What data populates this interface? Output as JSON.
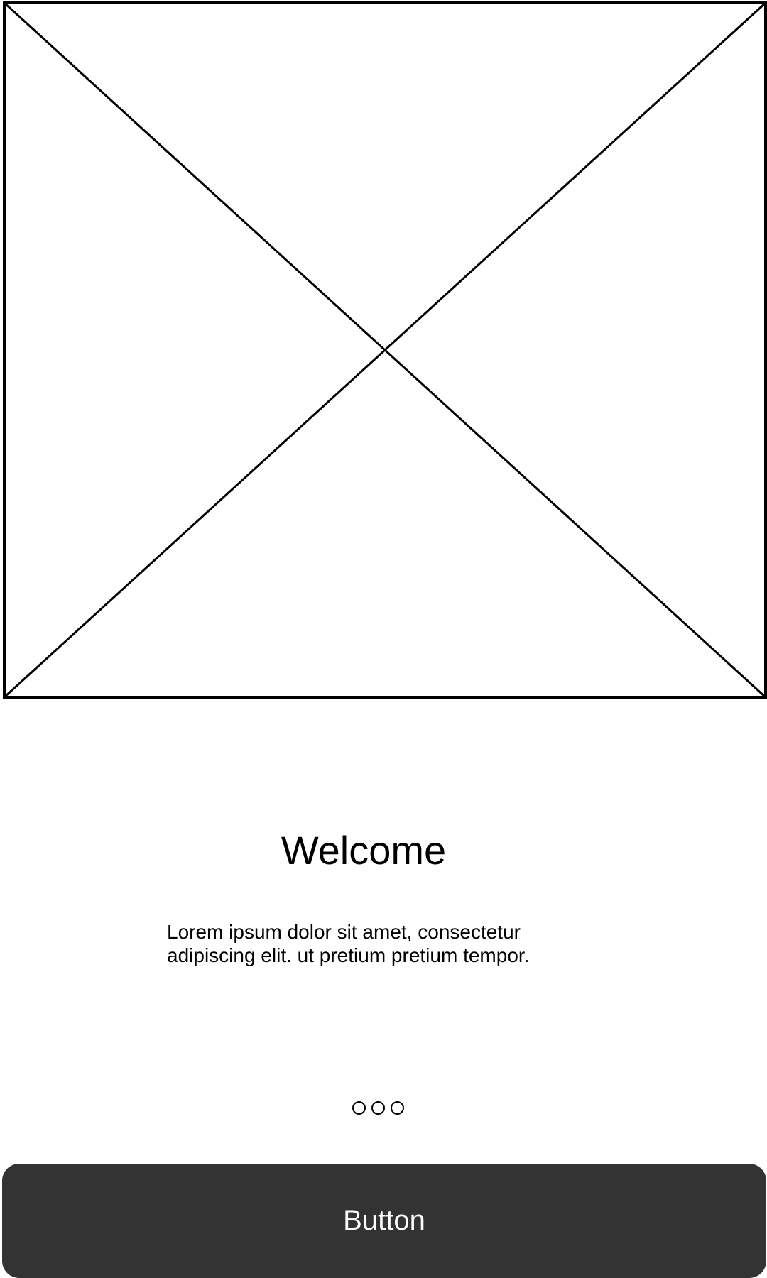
{
  "screen": {
    "image_placeholder_icon": "image-placeholder-icon",
    "title": "Welcome",
    "body": "Lorem ipsum dolor sit amet, consectetur adipiscing elit. ut pretium pretium tempor.",
    "pager": {
      "total_pages": 3
    },
    "primary_button_label": "Button"
  },
  "colors": {
    "background": "#ffffff",
    "text": "#000000",
    "button_background": "#333333",
    "button_text": "#ffffff"
  }
}
